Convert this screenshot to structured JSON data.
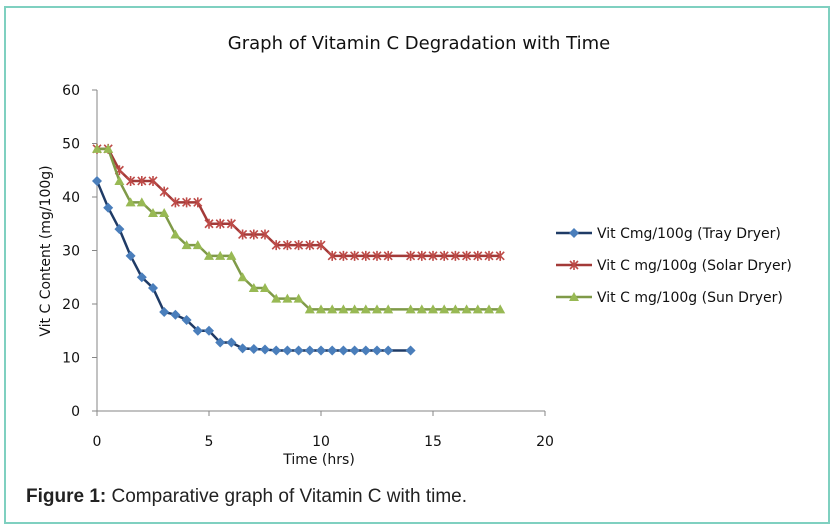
{
  "caption": {
    "label": "Figure 1:",
    "text": " Comparative graph of Vitamin C with time."
  },
  "chart_data": {
    "type": "line",
    "title": "Graph of Vitamin C Degradation with Time",
    "xlabel": "Time (hrs)",
    "ylabel": "Vit C Content (mg/100g)",
    "xlim": [
      0,
      20
    ],
    "ylim": [
      0,
      60
    ],
    "xticks": [
      0,
      5,
      10,
      15,
      20
    ],
    "yticks": [
      0,
      10,
      20,
      30,
      40,
      50,
      60
    ],
    "grid": false,
    "legend_position": "right",
    "series": [
      {
        "name": "Vit Cmg/100g (Tray Dryer)",
        "color": "#4a7ebb",
        "line_color": "#1f3b66",
        "marker": "diamond",
        "x": [
          0,
          0.5,
          1,
          1.5,
          2,
          2.5,
          3,
          3.5,
          4,
          4.5,
          5,
          5.5,
          6,
          6.5,
          7,
          7.5,
          8,
          8.5,
          9,
          9.5,
          10,
          10.5,
          11,
          11.5,
          12,
          12.5,
          13,
          14
        ],
        "y": [
          43,
          38,
          34,
          29,
          25,
          23,
          18.5,
          18,
          17,
          15,
          15,
          12.8,
          12.8,
          11.7,
          11.6,
          11.5,
          11.3,
          11.3,
          11.3,
          11.3,
          11.3,
          11.3,
          11.3,
          11.3,
          11.3,
          11.3,
          11.3,
          11.3
        ]
      },
      {
        "name": "Vit C mg/100g (Solar Dryer)",
        "color": "#be4b48",
        "line_color": "#a33a38",
        "marker": "star",
        "x": [
          0,
          0.5,
          1,
          1.5,
          2,
          2.5,
          3,
          3.5,
          4,
          4.5,
          5,
          5.5,
          6,
          6.5,
          7,
          7.5,
          8,
          8.5,
          9,
          9.5,
          10,
          10.5,
          11,
          11.5,
          12,
          12.5,
          13,
          14,
          14.5,
          15,
          15.5,
          16,
          16.5,
          17,
          17.5,
          18
        ],
        "y": [
          49,
          49,
          45,
          43,
          43,
          43,
          41,
          39,
          39,
          39,
          35,
          35,
          35,
          33,
          33,
          33,
          31,
          31,
          31,
          31,
          31,
          29,
          29,
          29,
          29,
          29,
          29,
          29,
          29,
          29,
          29,
          29,
          29,
          29,
          29,
          29
        ]
      },
      {
        "name": "Vit C mg/100g (Sun Dryer)",
        "color": "#98b954",
        "line_color": "#7f9a48",
        "marker": "triangle",
        "x": [
          0,
          0.5,
          1,
          1.5,
          2,
          2.5,
          3,
          3.5,
          4,
          4.5,
          5,
          5.5,
          6,
          6.5,
          7,
          7.5,
          8,
          8.5,
          9,
          9.5,
          10,
          10.5,
          11,
          11.5,
          12,
          12.5,
          13,
          14,
          14.5,
          15,
          15.5,
          16,
          16.5,
          17,
          17.5,
          18
        ],
        "y": [
          49,
          49,
          43,
          39,
          39,
          37,
          37,
          33,
          31,
          31,
          29,
          29,
          29,
          25,
          23,
          23,
          21,
          21,
          21,
          19,
          19,
          19,
          19,
          19,
          19,
          19,
          19,
          19,
          19,
          19,
          19,
          19,
          19,
          19,
          19,
          19
        ]
      }
    ]
  }
}
